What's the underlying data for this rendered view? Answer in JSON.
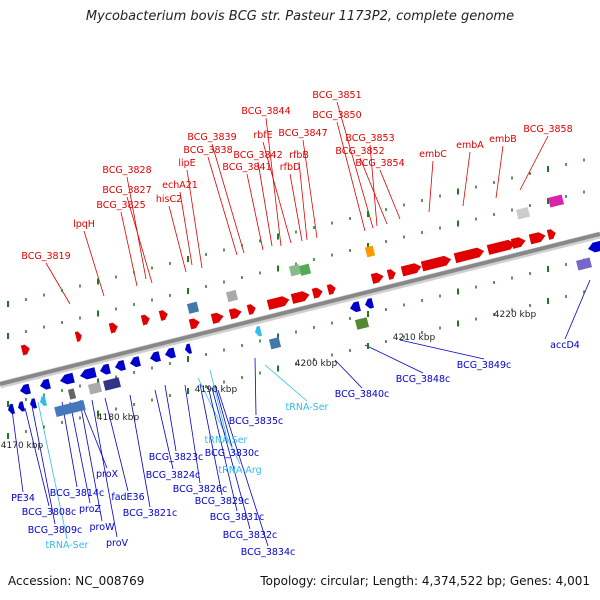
{
  "title": "Mycobacterium bovis BCG str. Pasteur 1173P2, complete genome",
  "footer": {
    "accession": "Accession: NC_008769",
    "summary": "Topology: circular; Length: 4,374,522 bp; Genes: 4,001"
  },
  "colors": {
    "forward": "#e00000",
    "reverse": "#0000cc",
    "trna": "#33bbee",
    "backbone": "#888888",
    "tick": "#227722"
  },
  "scale_labels": [
    "4170 kbp",
    "4180 kbp",
    "4190 kbp",
    "4200 kbp",
    "4210 kbp",
    "4220 kbp"
  ],
  "top_labels": [
    "BCG_3851",
    "BCG_3844",
    "BCG_3850",
    "rbfE",
    "BCG_3847",
    "BCG_3853",
    "BCG_3858",
    "BCG_3839",
    "BCG_3838",
    "BCG_3842",
    "rfbB",
    "BCG_3852",
    "embA",
    "embB",
    "lipE",
    "BCG_3841",
    "rfbD",
    "BCG_3854",
    "embC",
    "BCG_3828",
    "echA21",
    "BCG_3827",
    "hisC2",
    "BCG_3825",
    "lpqH",
    "BCG_3819"
  ],
  "bottom_labels": [
    "accD4",
    "BCG_3849c",
    "BCG_3848c",
    "BCG_3840c",
    "tRNA-Ser",
    "BCG_3835c",
    "tRNA-Ser",
    "BCG_3830c",
    "tRNA-Arg",
    "BCG_3823c",
    "BCG_3824c",
    "BCG_3826c",
    "BCG_3829c",
    "BCG_3831c",
    "BCG_3832c",
    "BCG_3834c",
    "proX",
    "fadE36",
    "BCG_3821c",
    "BCG_3814c",
    "proZ",
    "proW",
    "proV",
    "PE34",
    "BCG_3808c",
    "BCG_3809c",
    "tRNA-Ser"
  ]
}
